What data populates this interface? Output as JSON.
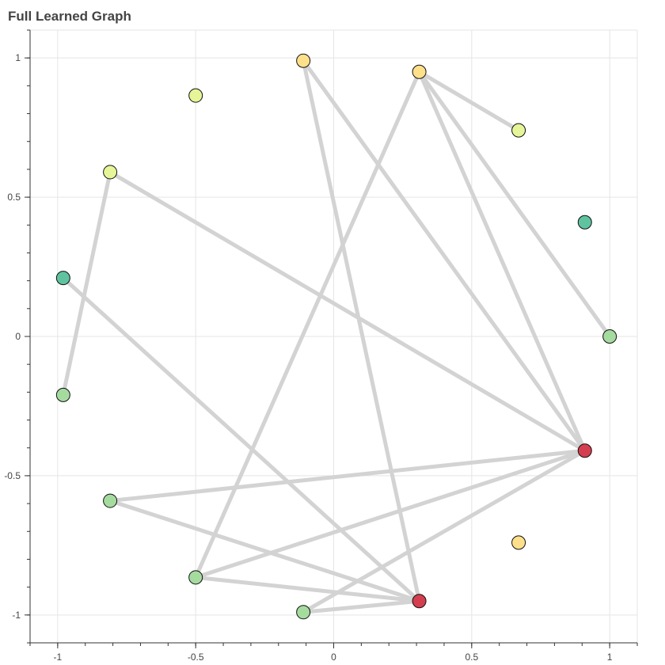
{
  "chart_data": {
    "type": "scatter",
    "title": "Full Learned Graph",
    "xlabel": "",
    "ylabel": "",
    "xlim": [
      -1.1,
      1.1
    ],
    "ylim": [
      -1.1,
      1.1
    ],
    "grid": true,
    "x_ticks": [
      -1,
      -0.5,
      0,
      0.5,
      1
    ],
    "x_tick_labels": [
      "-1",
      "-0.5",
      "0",
      "0.5",
      "1"
    ],
    "y_ticks": [
      -1,
      -0.5,
      0,
      0.5,
      1
    ],
    "y_tick_labels": [
      "-1",
      "-0.5",
      "0",
      "0.5",
      "1"
    ],
    "nodes": [
      {
        "x": 1.0,
        "y": 0.0,
        "color": "#a6dba0"
      },
      {
        "x": 0.91,
        "y": 0.41,
        "color": "#5fc3a0"
      },
      {
        "x": 0.67,
        "y": 0.74,
        "color": "#e6f598"
      },
      {
        "x": 0.31,
        "y": 0.95,
        "color": "#fee08b"
      },
      {
        "x": -0.11,
        "y": 0.99,
        "color": "#fee08b"
      },
      {
        "x": -0.5,
        "y": 0.865,
        "color": "#e6f598"
      },
      {
        "x": -0.81,
        "y": 0.59,
        "color": "#e6f598"
      },
      {
        "x": -0.98,
        "y": 0.21,
        "color": "#5fc3a0"
      },
      {
        "x": -0.98,
        "y": -0.21,
        "color": "#a6dba0"
      },
      {
        "x": -0.81,
        "y": -0.59,
        "color": "#a6dba0"
      },
      {
        "x": -0.5,
        "y": -0.865,
        "color": "#a6dba0"
      },
      {
        "x": -0.11,
        "y": -0.99,
        "color": "#a6dba0"
      },
      {
        "x": 0.31,
        "y": -0.95,
        "color": "#d53e4f"
      },
      {
        "x": 0.67,
        "y": -0.74,
        "color": "#fee08b"
      },
      {
        "x": 0.91,
        "y": -0.41,
        "color": "#d53e4f"
      }
    ],
    "edges": [
      [
        3,
        2
      ],
      [
        3,
        0
      ],
      [
        3,
        14
      ],
      [
        3,
        10
      ],
      [
        4,
        14
      ],
      [
        4,
        12
      ],
      [
        6,
        14
      ],
      [
        6,
        8
      ],
      [
        7,
        12
      ],
      [
        9,
        14
      ],
      [
        9,
        12
      ],
      [
        10,
        14
      ],
      [
        10,
        12
      ],
      [
        11,
        12
      ],
      [
        11,
        14
      ]
    ],
    "colors": {
      "edge": "#d3d3d3",
      "grid": "#e5e5e5",
      "axis": "#333333",
      "node_stroke": "#111111"
    }
  }
}
